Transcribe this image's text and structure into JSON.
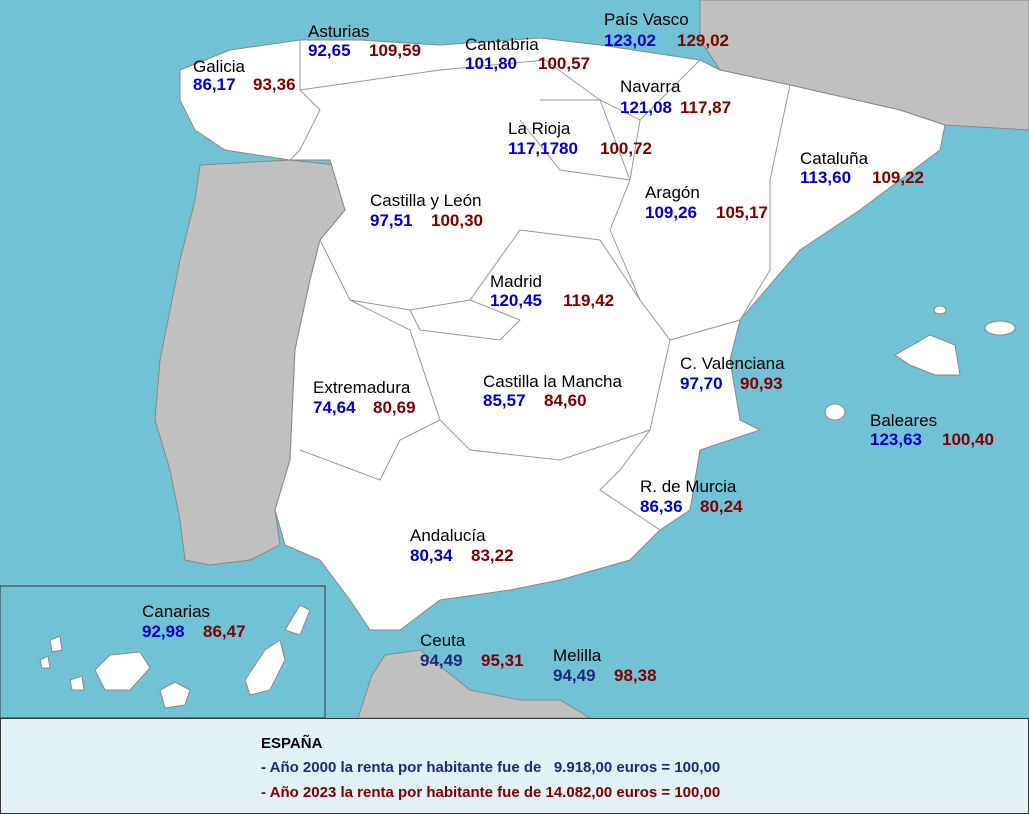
{
  "regions": [
    {
      "name": "Galicia",
      "y2000": "86,17",
      "y2023": "93,36"
    },
    {
      "name": "Asturias",
      "y2000": "92,65",
      "y2023": "109,59"
    },
    {
      "name": "Cantabria",
      "y2000": "101,80",
      "y2023": "100,57"
    },
    {
      "name": "País Vasco",
      "y2000": "123,02",
      "y2023": "129,02"
    },
    {
      "name": "Navarra",
      "y2000": "121,08",
      "y2023": "117,87"
    },
    {
      "name": "La Rioja",
      "y2000": "117,1780",
      "y2023": "100,72"
    },
    {
      "name": "Cataluña",
      "y2000": "113,60",
      "y2023": "109,22"
    },
    {
      "name": "Aragón",
      "y2000": "109,26",
      "y2023": "105,17"
    },
    {
      "name": "Castilla y León",
      "y2000": "97,51",
      "y2023": "100,30"
    },
    {
      "name": "Madrid",
      "y2000": "120,45",
      "y2023": "119,42"
    },
    {
      "name": "C. Valenciana",
      "y2000": "97,70",
      "y2023": "90,93"
    },
    {
      "name": "Extremadura",
      "y2000": "74,64",
      "y2023": "80,69"
    },
    {
      "name": "Castilla la Mancha",
      "y2000": "85,57",
      "y2023": "84,60"
    },
    {
      "name": "Baleares",
      "y2000": "123,63",
      "y2023": "100,40"
    },
    {
      "name": "R. de Murcia",
      "y2000": "86,36",
      "y2023": "80,24"
    },
    {
      "name": "Andalucía",
      "y2000": "80,34",
      "y2023": "83,22"
    },
    {
      "name": "Canarias",
      "y2000": "92,98",
      "y2023": "86,47"
    },
    {
      "name": "Ceuta",
      "y2000": "94,49",
      "y2023": "95,31"
    },
    {
      "name": "Melilla",
      "y2000": "94,49",
      "y2023": "98,38"
    }
  ],
  "footer": {
    "title": "ESPAÑA",
    "line1": "- Año 2000 la renta por habitante fue de   9.918,00 euros = 100,00",
    "line2": "- Año 2023 la renta por habitante fue de 14.082,00 euros = 100,00"
  }
}
